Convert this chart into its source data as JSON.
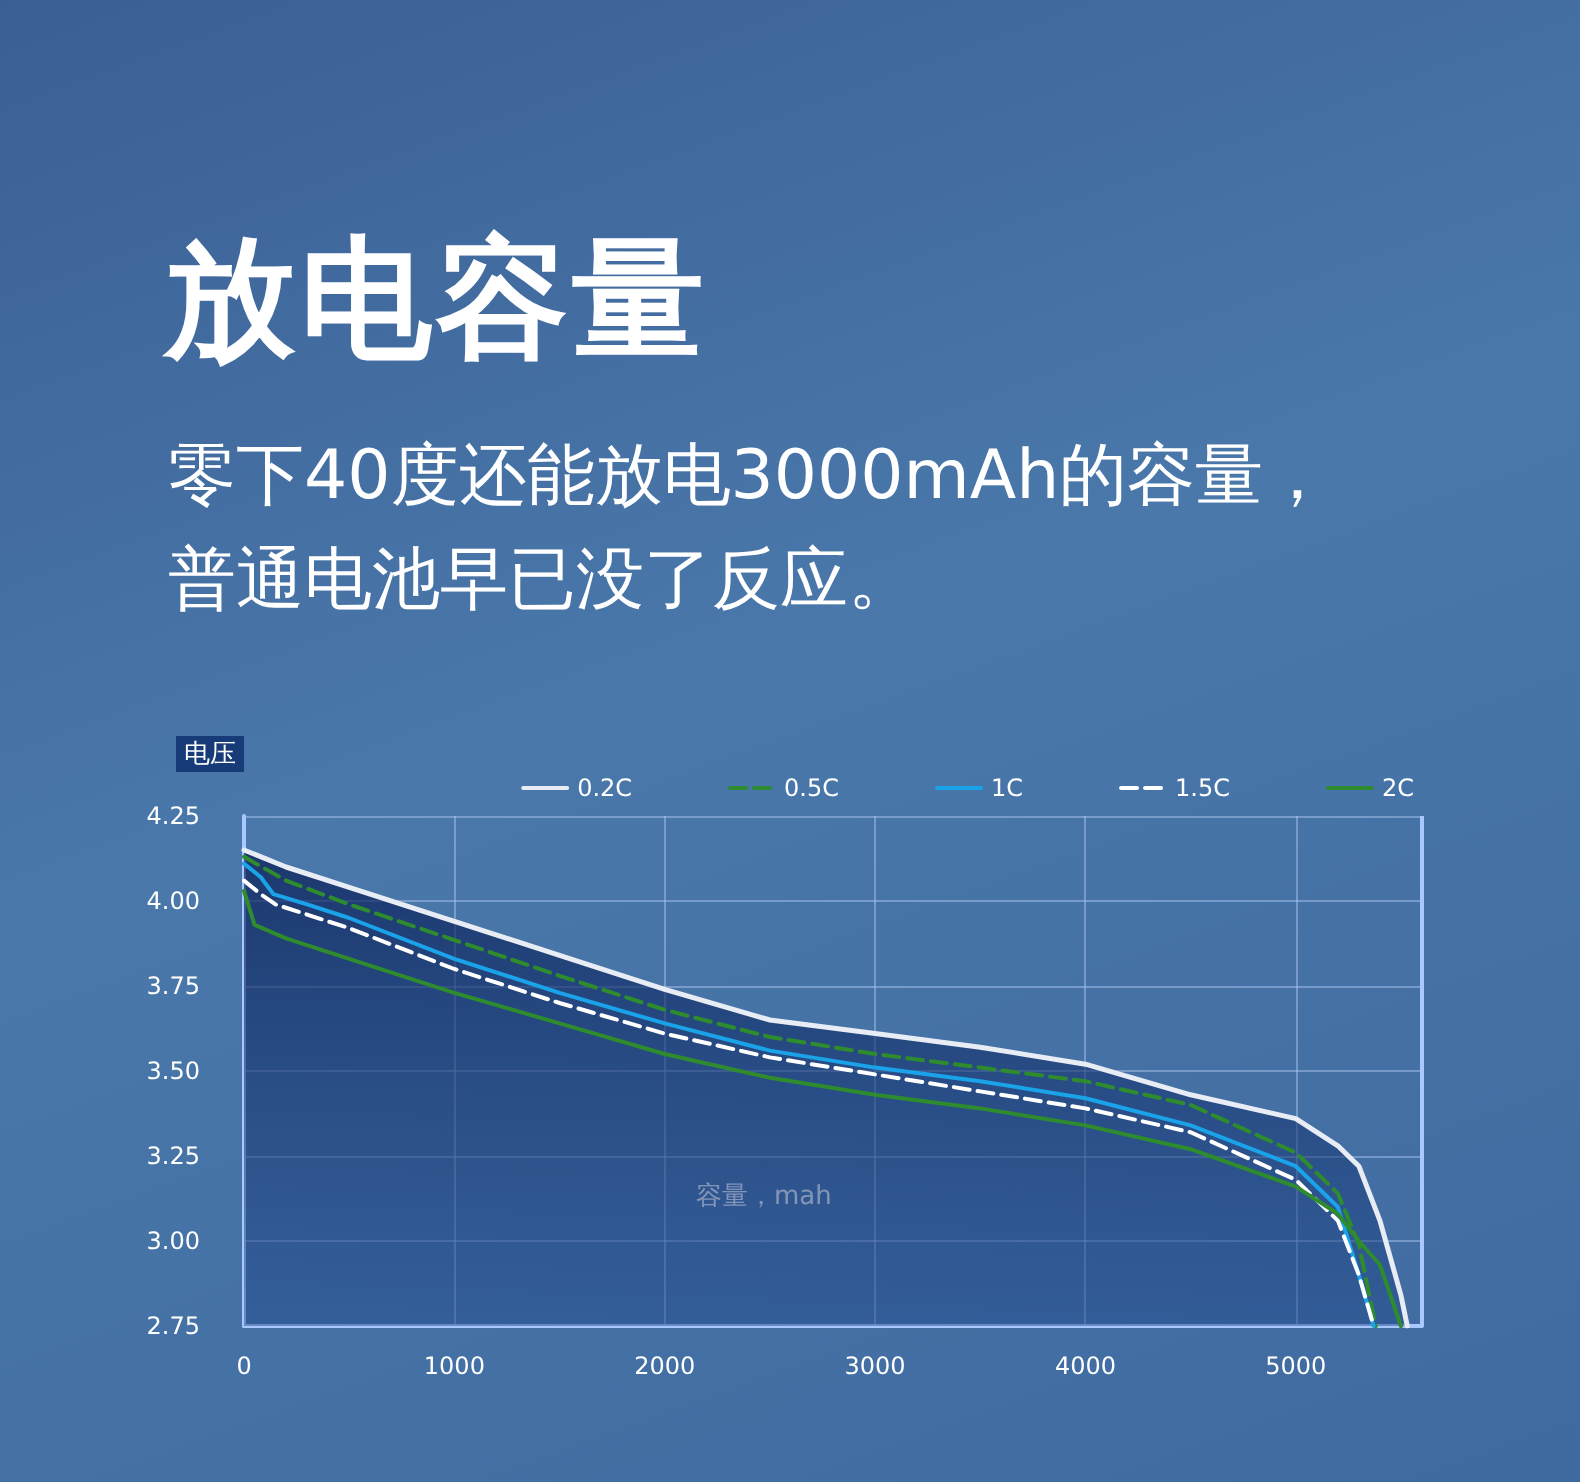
{
  "chart_data": {
    "type": "line",
    "title": "放电容量",
    "subtitle": "零下40度还能放电3000mAh的容量，普通电池早已没了反应。",
    "xlabel": "容量，mah",
    "ylabel": "电压",
    "xlim": [
      0,
      5600
    ],
    "xticks": [
      0,
      1000,
      2000,
      3000,
      4000,
      5000
    ],
    "ylim": [
      2.75,
      4.25
    ],
    "yticks": [
      2.75,
      {
        "value": 3,
        "label": "3.00"
      },
      3.25,
      {
        "value": 3.5,
        "label": "3.50"
      },
      3.75,
      {
        "value": 4,
        "label": "4.00"
      },
      4.25
    ],
    "grid": true,
    "legend": "top right",
    "marker": "none",
    "series": [
      {
        "name": "0.2C",
        "type": "area",
        "color": "#e8ecf5",
        "line_style": "solid",
        "x": [
          0,
          200,
          500,
          1000,
          1500,
          2000,
          2500,
          3000,
          3500,
          4000,
          4500,
          5000,
          5200,
          5300,
          5400,
          5500,
          5530
        ],
        "values": [
          4.15,
          4.1,
          4.04,
          3.94,
          3.84,
          3.74,
          3.65,
          3.61,
          3.57,
          3.52,
          3.43,
          3.36,
          3.28,
          3.22,
          3.06,
          2.84,
          2.75
        ]
      },
      {
        "name": "0.5C",
        "color": "#2e8b2e",
        "line_style": "dashed",
        "x": [
          0,
          200,
          500,
          1000,
          1500,
          2000,
          2500,
          3000,
          3500,
          4000,
          4500,
          5000,
          5200,
          5300,
          5380
        ],
        "values": [
          4.13,
          4.06,
          3.99,
          3.885,
          3.78,
          3.68,
          3.6,
          3.55,
          3.51,
          3.47,
          3.4,
          3.26,
          3.14,
          2.99,
          2.75
        ]
      },
      {
        "name": "1C",
        "color": "#1aa3e8",
        "line_style": "solid",
        "x": [
          0,
          80,
          140,
          300,
          500,
          1000,
          1500,
          2000,
          2500,
          3000,
          3500,
          4000,
          4500,
          5000,
          5200,
          5300,
          5370
        ],
        "values": [
          4.11,
          4.07,
          4.02,
          3.99,
          3.95,
          3.83,
          3.73,
          3.64,
          3.56,
          3.51,
          3.47,
          3.42,
          3.34,
          3.22,
          3.1,
          2.9,
          2.75
        ]
      },
      {
        "name": "1.5C",
        "color": "#ffffff",
        "line_style": "dashed",
        "x": [
          0,
          80,
          150,
          300,
          500,
          1000,
          1500,
          2000,
          2500,
          3000,
          3500,
          4000,
          4500,
          5000,
          5200,
          5300,
          5370
        ],
        "values": [
          4.06,
          4.02,
          3.99,
          3.96,
          3.92,
          3.8,
          3.7,
          3.61,
          3.54,
          3.49,
          3.44,
          3.39,
          3.32,
          3.18,
          3.06,
          2.9,
          2.75
        ]
      },
      {
        "name": "2C",
        "color": "#2e8b2e",
        "line_style": "solid",
        "x": [
          0,
          50,
          200,
          500,
          1000,
          1500,
          2000,
          2500,
          3000,
          3500,
          4000,
          4500,
          5000,
          5200,
          5300,
          5400,
          5500
        ],
        "values": [
          4.03,
          3.93,
          3.89,
          3.83,
          3.73,
          3.64,
          3.55,
          3.48,
          3.43,
          3.39,
          3.34,
          3.27,
          3.16,
          3.08,
          3.0,
          2.93,
          2.75
        ]
      }
    ]
  }
}
